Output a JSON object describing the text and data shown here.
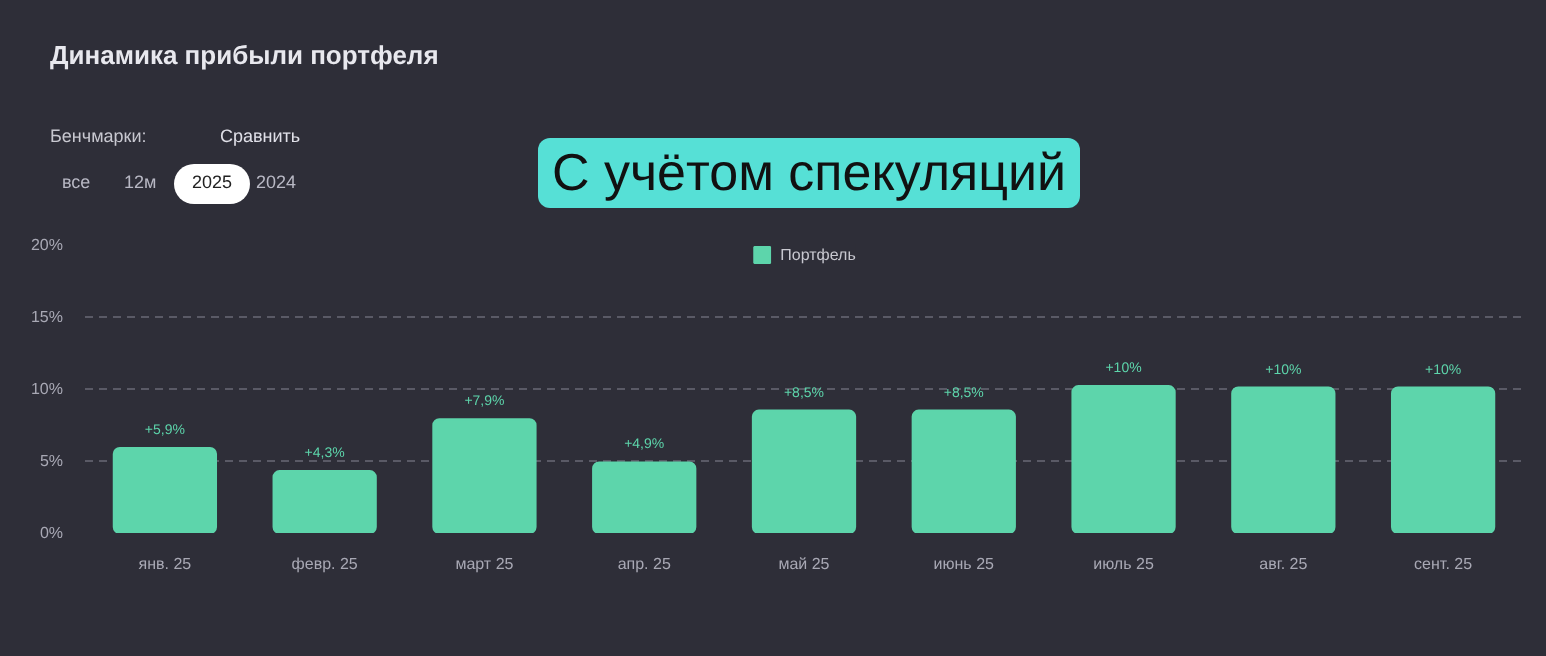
{
  "chart_data": {
    "type": "bar",
    "title": "Динамика прибыли портфеля",
    "categories": [
      "янв. 25",
      "февр. 25",
      "март 25",
      "апр. 25",
      "май 25",
      "июнь 25",
      "июль 25",
      "авг. 25",
      "сент. 25"
    ],
    "series": [
      {
        "name": "Портфель",
        "color": "#5dd5ab",
        "values": [
          5.9,
          4.3,
          7.9,
          4.9,
          8.5,
          8.5,
          10.2,
          10.1,
          10.1
        ],
        "value_labels": [
          "+5,9%",
          "+4,3%",
          "+7,9%",
          "+4,9%",
          "+8,5%",
          "+8,5%",
          "+10%",
          "+10%",
          "+10%"
        ]
      }
    ],
    "ylim": [
      0,
      20
    ],
    "yticks": [
      {
        "value": 0,
        "label": "0%"
      },
      {
        "value": 5,
        "label": "5%"
      },
      {
        "value": 10,
        "label": "10%"
      },
      {
        "value": 15,
        "label": "15%"
      },
      {
        "value": 20,
        "label": "20%"
      }
    ],
    "grid": "y",
    "legend": "top",
    "annotations": [
      "Бенчмарки:",
      "Сравнить",
      "все",
      "12м",
      "2025",
      "2024",
      "С учётом спекуляций"
    ]
  }
}
